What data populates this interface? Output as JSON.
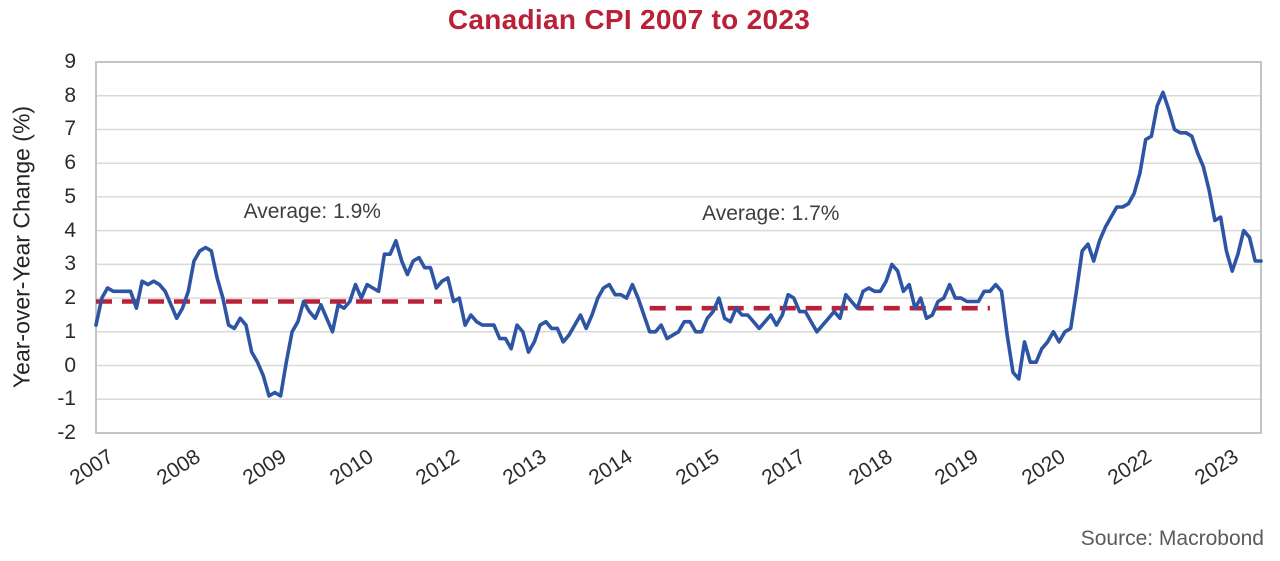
{
  "title": "Canadian CPI 2007 to 2023",
  "source": "Source: Macrobond",
  "colors": {
    "accent_red": "#ba2038",
    "line_blue": "#2d55a4",
    "grid": "#d9d9d9",
    "border": "#c4c4c4"
  },
  "y_axis": {
    "label": "Year-over-Year Change (%)",
    "ticks": [
      9,
      8,
      7,
      6,
      5,
      4,
      3,
      2,
      1,
      0,
      -1,
      -2
    ],
    "max": 9,
    "min": -2
  },
  "x_axis": {
    "ticks": [
      {
        "label": "2007",
        "month": 0
      },
      {
        "label": "2008",
        "month": 15
      },
      {
        "label": "2009",
        "month": 30
      },
      {
        "label": "2010",
        "month": 45
      },
      {
        "label": "2012",
        "month": 60
      },
      {
        "label": "2013",
        "month": 75
      },
      {
        "label": "2014",
        "month": 90
      },
      {
        "label": "2015",
        "month": 105
      },
      {
        "label": "2017",
        "month": 120
      },
      {
        "label": "2018",
        "month": 135
      },
      {
        "label": "2019",
        "month": 150
      },
      {
        "label": "2020",
        "month": 165
      },
      {
        "label": "2022",
        "month": 180
      },
      {
        "label": "2023",
        "month": 195
      }
    ]
  },
  "chart_data": {
    "type": "line",
    "title": "Canadian CPI 2007 to 2023",
    "ylabel": "Year-over-Year Change (%)",
    "ylim": [
      -2,
      9
    ],
    "grid": "horizontal",
    "x_start": "2007-01",
    "x_end": "2023-11",
    "frequency": "monthly",
    "series": [
      {
        "name": "Canadian CPI year-over-year change (%)",
        "color": "#2d55a4",
        "values": [
          1.2,
          2.0,
          2.3,
          2.2,
          2.2,
          2.2,
          2.2,
          1.7,
          2.5,
          2.4,
          2.5,
          2.4,
          2.2,
          1.8,
          1.4,
          1.7,
          2.2,
          3.1,
          3.4,
          3.5,
          3.4,
          2.6,
          2.0,
          1.2,
          1.1,
          1.4,
          1.2,
          0.4,
          0.1,
          -0.3,
          -0.9,
          -0.8,
          -0.9,
          0.1,
          1.0,
          1.3,
          1.9,
          1.6,
          1.4,
          1.8,
          1.4,
          1.0,
          1.8,
          1.7,
          1.9,
          2.4,
          2.0,
          2.4,
          2.3,
          2.2,
          3.3,
          3.3,
          3.7,
          3.1,
          2.7,
          3.1,
          3.2,
          2.9,
          2.9,
          2.3,
          2.5,
          2.6,
          1.9,
          2.0,
          1.2,
          1.5,
          1.3,
          1.2,
          1.2,
          1.2,
          0.8,
          0.8,
          0.5,
          1.2,
          1.0,
          0.4,
          0.7,
          1.2,
          1.3,
          1.1,
          1.1,
          0.7,
          0.9,
          1.2,
          1.5,
          1.1,
          1.5,
          2.0,
          2.3,
          2.4,
          2.1,
          2.1,
          2.0,
          2.4,
          2.0,
          1.5,
          1.0,
          1.0,
          1.2,
          0.8,
          0.9,
          1.0,
          1.3,
          1.3,
          1.0,
          1.0,
          1.4,
          1.6,
          2.0,
          1.4,
          1.3,
          1.7,
          1.5,
          1.5,
          1.3,
          1.1,
          1.3,
          1.5,
          1.2,
          1.5,
          2.1,
          2.0,
          1.6,
          1.6,
          1.3,
          1.0,
          1.2,
          1.4,
          1.6,
          1.4,
          2.1,
          1.9,
          1.7,
          2.2,
          2.3,
          2.2,
          2.2,
          2.5,
          3.0,
          2.8,
          2.2,
          2.4,
          1.7,
          2.0,
          1.4,
          1.5,
          1.9,
          2.0,
          2.4,
          2.0,
          2.0,
          1.9,
          1.9,
          1.9,
          2.2,
          2.2,
          2.4,
          2.2,
          0.9,
          -0.2,
          -0.4,
          0.7,
          0.1,
          0.1,
          0.5,
          0.7,
          1.0,
          0.7,
          1.0,
          1.1,
          2.2,
          3.4,
          3.6,
          3.1,
          3.7,
          4.1,
          4.4,
          4.7,
          4.7,
          4.8,
          5.1,
          5.7,
          6.7,
          6.8,
          7.7,
          8.1,
          7.6,
          7.0,
          6.9,
          6.9,
          6.8,
          6.3,
          5.9,
          5.2,
          4.3,
          4.4,
          3.4,
          2.8,
          3.3,
          4.0,
          3.8,
          3.1,
          3.1
        ]
      }
    ],
    "annotations": [
      {
        "text": "Average: 1.9%",
        "value": 1.9,
        "span_start_month": 0,
        "span_end_month": 60,
        "label_month": 37.5,
        "label_value": 4.55
      },
      {
        "text": "Average: 1.7%",
        "value": 1.7,
        "span_start_month": 96,
        "span_end_month": 155,
        "label_month": 117,
        "label_value": 4.5
      }
    ]
  }
}
